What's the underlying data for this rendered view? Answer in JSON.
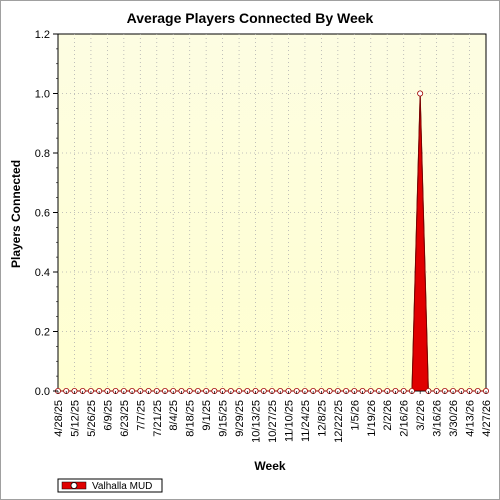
{
  "chart_data": {
    "type": "area",
    "title": "Average Players Connected By Week",
    "xlabel": "Week",
    "ylabel": "Players Connected",
    "ylim": [
      0,
      1.2
    ],
    "yticks": [
      "0.0",
      "0.2",
      "0.4",
      "0.6",
      "0.8",
      "1.0",
      "1.2"
    ],
    "grid": true,
    "legend": "bottom-left",
    "x": [
      "4/28/25",
      "5/5/25",
      "5/12/25",
      "5/19/25",
      "5/26/25",
      "6/2/25",
      "6/9/25",
      "6/16/25",
      "6/23/25",
      "6/30/25",
      "7/7/25",
      "7/14/25",
      "7/21/25",
      "7/28/25",
      "8/4/25",
      "8/11/25",
      "8/18/25",
      "8/25/25",
      "9/1/25",
      "9/8/25",
      "9/15/25",
      "9/22/25",
      "9/29/25",
      "10/6/25",
      "10/13/25",
      "10/20/25",
      "10/27/25",
      "11/3/25",
      "11/10/25",
      "11/17/25",
      "11/24/25",
      "12/1/25",
      "12/8/25",
      "12/15/25",
      "12/22/25",
      "12/29/25",
      "1/5/26",
      "1/12/26",
      "1/19/26",
      "1/26/26",
      "2/2/26",
      "2/9/26",
      "2/16/26",
      "2/23/26",
      "3/2/26",
      "3/9/26",
      "3/16/26",
      "3/23/26",
      "3/30/26",
      "4/6/26",
      "4/13/26",
      "4/20/26",
      "4/27/26"
    ],
    "xtick_labels": [
      "4/28/25",
      "5/12/25",
      "5/26/25",
      "6/9/25",
      "6/23/25",
      "7/7/25",
      "7/21/25",
      "8/4/25",
      "8/18/25",
      "9/1/25",
      "9/15/25",
      "9/29/25",
      "10/13/25",
      "10/27/25",
      "11/10/25",
      "11/24/25",
      "12/8/25",
      "12/22/25",
      "1/5/26",
      "1/19/26",
      "2/2/26",
      "2/16/26",
      "3/2/26",
      "3/16/26",
      "3/30/26",
      "4/13/26",
      "4/27/26"
    ],
    "series": [
      {
        "name": "Valhalla MUD",
        "color": "#e00000",
        "values": [
          0,
          0,
          0,
          0,
          0,
          0,
          0,
          0,
          0,
          0,
          0,
          0,
          0,
          0,
          0,
          0,
          0,
          0,
          0,
          0,
          0,
          0,
          0,
          0,
          0,
          0,
          0,
          0,
          0,
          0,
          0,
          0,
          0,
          0,
          0,
          0,
          0,
          0,
          0,
          0,
          0,
          0,
          0,
          0,
          1.0,
          0,
          0,
          0,
          0,
          0,
          0,
          0,
          0
        ]
      }
    ],
    "colors": {
      "plot_top": "#fdfde2",
      "plot_bottom": "#ffffd0",
      "grid": "#b0b0b0"
    }
  }
}
